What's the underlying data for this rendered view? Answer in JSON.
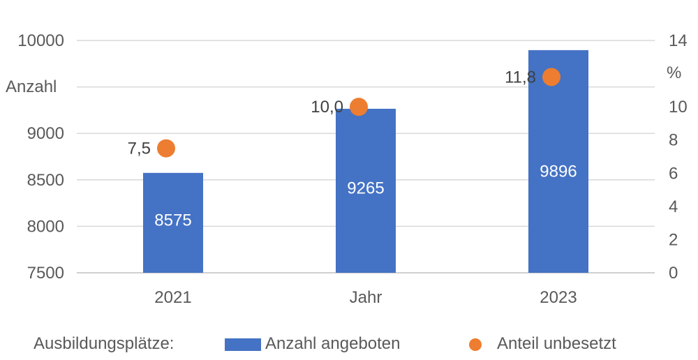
{
  "chart_data": {
    "type": "bar",
    "categories": [
      "2021",
      "Jahr",
      "2023"
    ],
    "series": [
      {
        "name": "Anzahl angeboten",
        "type": "bar",
        "axis": "left",
        "values": [
          8575,
          9265,
          9896
        ],
        "labels": [
          "8575",
          "9265",
          "9896"
        ],
        "color": "#4472C4"
      },
      {
        "name": "Anteil unbesetzt",
        "type": "scatter",
        "axis": "right",
        "values": [
          7.5,
          10.0,
          11.8
        ],
        "labels": [
          "7,5",
          "10,0",
          "11,8"
        ],
        "color": "#ED7D31"
      }
    ],
    "y_left": {
      "label": "Anzahl",
      "min": 7500,
      "max": 10000,
      "ticks": [
        7500,
        8000,
        8500,
        9000,
        10000
      ],
      "tick_labels": [
        "7500",
        "8000",
        "8500",
        "9000",
        "10000"
      ]
    },
    "y_right": {
      "label": "%",
      "min": 0,
      "max": 14,
      "ticks": [
        0,
        2,
        4,
        6,
        8,
        10,
        14
      ],
      "tick_labels": [
        "0",
        "2",
        "4",
        "6",
        "8",
        "10",
        "14"
      ]
    },
    "grid": true,
    "legend": {
      "title": "Ausbildungsplätze:",
      "position": "bottom",
      "items": [
        "Anzahl angeboten",
        "Anteil unbesetzt"
      ]
    }
  }
}
